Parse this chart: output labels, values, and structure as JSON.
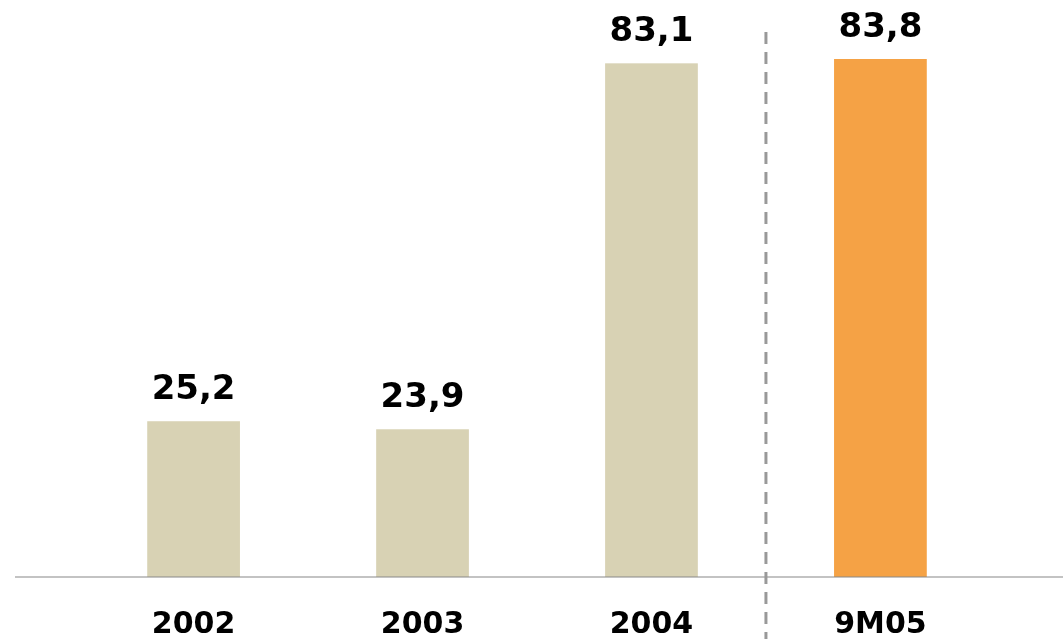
{
  "chart_data": {
    "type": "bar",
    "categories": [
      "2002",
      "2003",
      "2004",
      "9M05"
    ],
    "values": [
      25.2,
      23.9,
      83.1,
      83.8
    ],
    "colors": [
      "#d8d2b4",
      "#d8d2b4",
      "#d8d2b4",
      "#f5a245"
    ],
    "value_labels": [
      "25,2",
      "23,9",
      "83,1",
      "83,8"
    ]
  }
}
